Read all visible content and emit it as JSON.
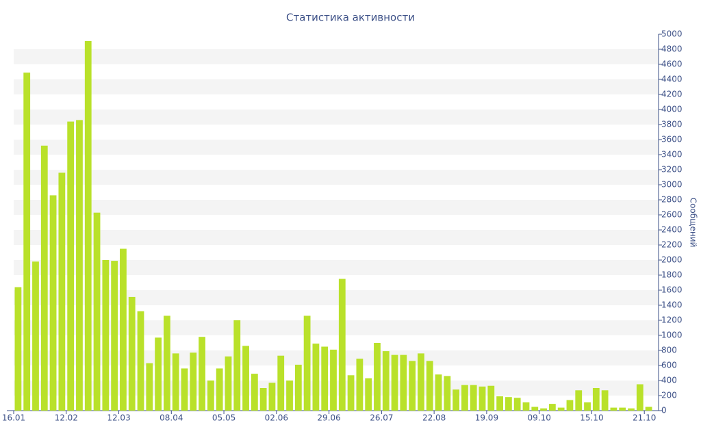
{
  "chart_data": {
    "type": "bar",
    "title": "Статистика активности",
    "y_label": "Сообщений",
    "color": "#b9e12a",
    "grid": true,
    "categories": [
      "16.01",
      null,
      null,
      null,
      null,
      null,
      "12.02",
      null,
      null,
      null,
      null,
      null,
      "12.03",
      null,
      null,
      null,
      null,
      null,
      "08.04",
      null,
      null,
      null,
      null,
      null,
      "05.05",
      null,
      null,
      null,
      null,
      null,
      "02.06",
      null,
      null,
      null,
      null,
      null,
      "29.06",
      null,
      null,
      null,
      null,
      null,
      "26.07",
      null,
      null,
      null,
      null,
      null,
      "22.08",
      null,
      null,
      null,
      null,
      null,
      "19.09",
      null,
      null,
      null,
      null,
      null,
      "09.10",
      null,
      null,
      null,
      null,
      null,
      "15.10",
      null,
      null,
      null,
      null,
      null,
      "21.10"
    ],
    "values": [
      1640,
      4490,
      1980,
      3520,
      2860,
      3160,
      3840,
      3860,
      4910,
      2630,
      2000,
      1990,
      2150,
      1510,
      1320,
      630,
      970,
      1260,
      760,
      560,
      770,
      980,
      400,
      560,
      720,
      1200,
      860,
      490,
      300,
      370,
      730,
      400,
      610,
      1260,
      890,
      850,
      810,
      1750,
      470,
      690,
      430,
      900,
      790,
      740,
      740,
      660,
      760,
      660,
      480,
      460,
      280,
      340,
      340,
      320,
      330,
      190,
      180,
      170,
      110,
      50,
      30,
      90,
      40,
      140,
      270,
      110,
      300,
      270,
      40,
      40,
      30,
      350,
      50
    ],
    "ylim": [
      0,
      5000
    ],
    "yticks": [
      0,
      200,
      400,
      600,
      800,
      1000,
      1200,
      1400,
      1600,
      1800,
      2000,
      2200,
      2400,
      2600,
      2800,
      3000,
      3200,
      3400,
      3600,
      3800,
      4000,
      4200,
      4400,
      4600,
      4800,
      5000
    ]
  }
}
